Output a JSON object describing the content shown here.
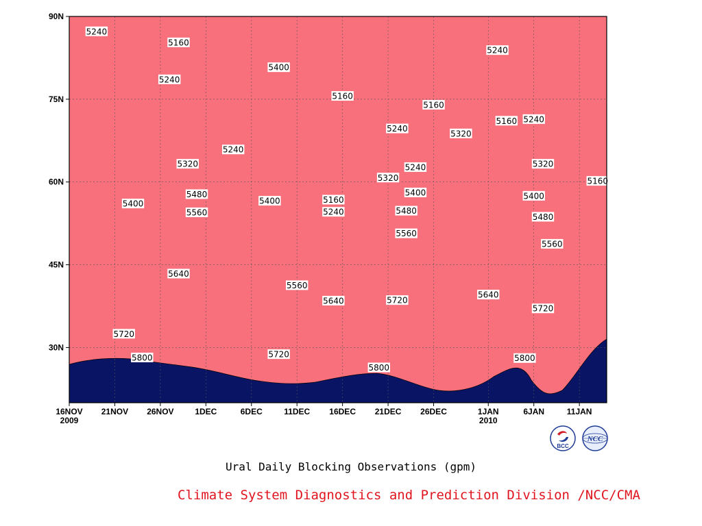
{
  "chart_data": {
    "type": "heatmap",
    "title": "Ural Daily Blocking Observations (gpm)",
    "x_ticks": [
      {
        "date": "2009-11-16",
        "label": "16NOV",
        "sublabel": "2009"
      },
      {
        "date": "2009-11-21",
        "label": "21NOV",
        "sublabel": ""
      },
      {
        "date": "2009-11-26",
        "label": "26NOV",
        "sublabel": ""
      },
      {
        "date": "2009-12-01",
        "label": "1DEC",
        "sublabel": ""
      },
      {
        "date": "2009-12-06",
        "label": "6DEC",
        "sublabel": ""
      },
      {
        "date": "2009-12-11",
        "label": "11DEC",
        "sublabel": ""
      },
      {
        "date": "2009-12-16",
        "label": "16DEC",
        "sublabel": ""
      },
      {
        "date": "2009-12-21",
        "label": "21DEC",
        "sublabel": ""
      },
      {
        "date": "2009-12-26",
        "label": "26DEC",
        "sublabel": ""
      },
      {
        "date": "2010-01-01",
        "label": "1JAN",
        "sublabel": "2010"
      },
      {
        "date": "2010-01-06",
        "label": "6JAN",
        "sublabel": ""
      },
      {
        "date": "2010-01-11",
        "label": "11JAN",
        "sublabel": ""
      }
    ],
    "y_ticks": [
      {
        "value": 90,
        "label": "90N"
      },
      {
        "value": 75,
        "label": "75N"
      },
      {
        "value": 60,
        "label": "60N"
      },
      {
        "value": 45,
        "label": "45N"
      },
      {
        "value": 30,
        "label": "30N"
      }
    ],
    "xlim": [
      "2009-11-16",
      "2010-01-14"
    ],
    "ylim": [
      20,
      90
    ],
    "grid": true,
    "contour_levels": [
      5160,
      5240,
      5320,
      5400,
      5480,
      5560,
      5640,
      5720,
      5800
    ],
    "level_colors": [
      "#0a1464",
      "#1a32d8",
      "#4a5aec",
      "#5a8ce6",
      "#64c8fc",
      "#fafa82",
      "#fce2a0",
      "#fca46a",
      "#fc7046",
      "#f8707c"
    ],
    "contour_labels": [
      {
        "date": "2009-11-19",
        "lat": 87.3,
        "text": "5240"
      },
      {
        "date": "2009-11-28",
        "lat": 85.3,
        "text": "5160"
      },
      {
        "date": "2009-11-27",
        "lat": 78.6,
        "text": "5240"
      },
      {
        "date": "2009-12-09",
        "lat": 80.8,
        "text": "5400"
      },
      {
        "date": "2009-12-16",
        "lat": 75.6,
        "text": "5160"
      },
      {
        "date": "2009-12-26",
        "lat": 74.0,
        "text": "5160"
      },
      {
        "date": "2010-01-02",
        "lat": 83.9,
        "text": "5240"
      },
      {
        "date": "2010-01-03",
        "lat": 71.1,
        "text": "5160"
      },
      {
        "date": "2010-01-06",
        "lat": 71.4,
        "text": "5240"
      },
      {
        "date": "2009-12-22",
        "lat": 69.7,
        "text": "5240"
      },
      {
        "date": "2009-12-29",
        "lat": 68.8,
        "text": "5320"
      },
      {
        "date": "2009-12-04",
        "lat": 65.9,
        "text": "5240"
      },
      {
        "date": "2009-11-29",
        "lat": 63.3,
        "text": "5320"
      },
      {
        "date": "2009-12-24",
        "lat": 62.7,
        "text": "5240"
      },
      {
        "date": "2010-01-07",
        "lat": 63.3,
        "text": "5320"
      },
      {
        "date": "2009-12-21",
        "lat": 60.8,
        "text": "5320"
      },
      {
        "date": "2010-01-13",
        "lat": 60.2,
        "text": "5160"
      },
      {
        "date": "2009-11-30",
        "lat": 57.8,
        "text": "5480"
      },
      {
        "date": "2009-12-24",
        "lat": 58.1,
        "text": "5400"
      },
      {
        "date": "2010-01-06",
        "lat": 57.5,
        "text": "5400"
      },
      {
        "date": "2009-12-15",
        "lat": 56.8,
        "text": "5160"
      },
      {
        "date": "2009-11-23",
        "lat": 56.1,
        "text": "5400"
      },
      {
        "date": "2009-12-08",
        "lat": 56.6,
        "text": "5400"
      },
      {
        "date": "2009-12-15",
        "lat": 54.6,
        "text": "5240"
      },
      {
        "date": "2009-12-23",
        "lat": 54.8,
        "text": "5480"
      },
      {
        "date": "2010-01-07",
        "lat": 53.7,
        "text": "5480"
      },
      {
        "date": "2009-11-30",
        "lat": 54.5,
        "text": "5560"
      },
      {
        "date": "2009-12-23",
        "lat": 50.7,
        "text": "5560"
      },
      {
        "date": "2010-01-08",
        "lat": 48.8,
        "text": "5560"
      },
      {
        "date": "2009-11-28",
        "lat": 43.4,
        "text": "5640"
      },
      {
        "date": "2009-12-11",
        "lat": 41.3,
        "text": "5560"
      },
      {
        "date": "2009-12-15",
        "lat": 38.5,
        "text": "5640"
      },
      {
        "date": "2010-01-01",
        "lat": 39.6,
        "text": "5640"
      },
      {
        "date": "2009-12-22",
        "lat": 38.6,
        "text": "5720"
      },
      {
        "date": "2010-01-07",
        "lat": 37.1,
        "text": "5720"
      },
      {
        "date": "2009-11-22",
        "lat": 32.5,
        "text": "5720"
      },
      {
        "date": "2009-12-09",
        "lat": 28.8,
        "text": "5720"
      },
      {
        "date": "2009-11-24",
        "lat": 28.2,
        "text": "5800"
      },
      {
        "date": "2009-12-20",
        "lat": 26.4,
        "text": "5800"
      },
      {
        "date": "2010-01-05",
        "lat": 28.1,
        "text": "5800"
      }
    ]
  },
  "footer": {
    "caption": "Ural Daily Blocking Observations (gpm)",
    "credit": "Climate System Diagnostics and Prediction Division /NCC/CMA"
  },
  "logos": {
    "left": {
      "text": "BCC",
      "icon": "bcc-logo-icon",
      "color": "#1e3a96"
    },
    "right": {
      "text": "NCC",
      "icon": "ncc-logo-icon",
      "color": "#1e3a96"
    }
  }
}
